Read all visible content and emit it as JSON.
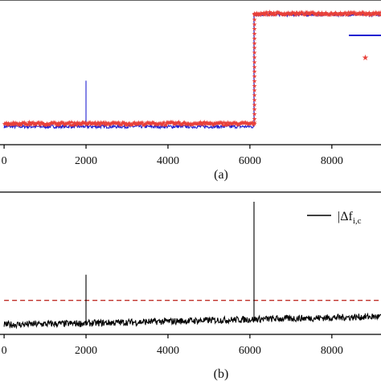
{
  "chart_data": [
    {
      "type": "line",
      "panel_label": "(a)",
      "xlim": [
        -100,
        9200
      ],
      "ylim": [
        0,
        1
      ],
      "x_ticks": [
        0,
        2000,
        4000,
        6000,
        8000
      ],
      "x_tick_labels": [
        "0",
        "2000",
        "4000",
        "6000",
        "8000"
      ],
      "series": [
        {
          "color": "#1f1fd1",
          "style": "line",
          "x": [
            0,
            2000,
            2000,
            2000,
            6100,
            6100,
            9200
          ],
          "y": [
            0.11,
            0.11,
            0.45,
            0.11,
            0.11,
            0.94,
            0.94
          ],
          "noise": 0.012
        },
        {
          "color": "#e8403a",
          "style": "star-markers",
          "x": [
            0,
            6100,
            6100,
            9200
          ],
          "y": [
            0.135,
            0.135,
            0.95,
            0.95
          ],
          "noise": 0.01
        }
      ],
      "legend": {
        "placement": "right",
        "entries": [
          {
            "color": "#1f1fd1",
            "marker": "line"
          },
          {
            "color": "#e8403a",
            "marker": "star"
          }
        ]
      }
    },
    {
      "type": "line",
      "panel_label": "(b)",
      "xlim": [
        -100,
        9200
      ],
      "ylim": [
        0,
        1
      ],
      "x_ticks": [
        0,
        2000,
        4000,
        6000,
        8000
      ],
      "x_tick_labels": [
        "0",
        "2000",
        "4000",
        "6000",
        "8000"
      ],
      "series": [
        {
          "color": "#000000",
          "style": "line",
          "x": [
            0,
            2000,
            2000,
            2000,
            6100,
            6100,
            6100,
            9200
          ],
          "y": [
            0.06,
            0.07,
            0.43,
            0.07,
            0.1,
            0.97,
            0.1,
            0.12
          ],
          "noise": 0.025
        }
      ],
      "threshold": {
        "y": 0.24,
        "color": "#c0302a",
        "style": "dashed"
      },
      "legend": {
        "placement": "top-right",
        "entries": [
          {
            "color": "#000000",
            "marker": "line",
            "label": "|Δf",
            "label_sub": "i,c"
          }
        ]
      }
    }
  ]
}
